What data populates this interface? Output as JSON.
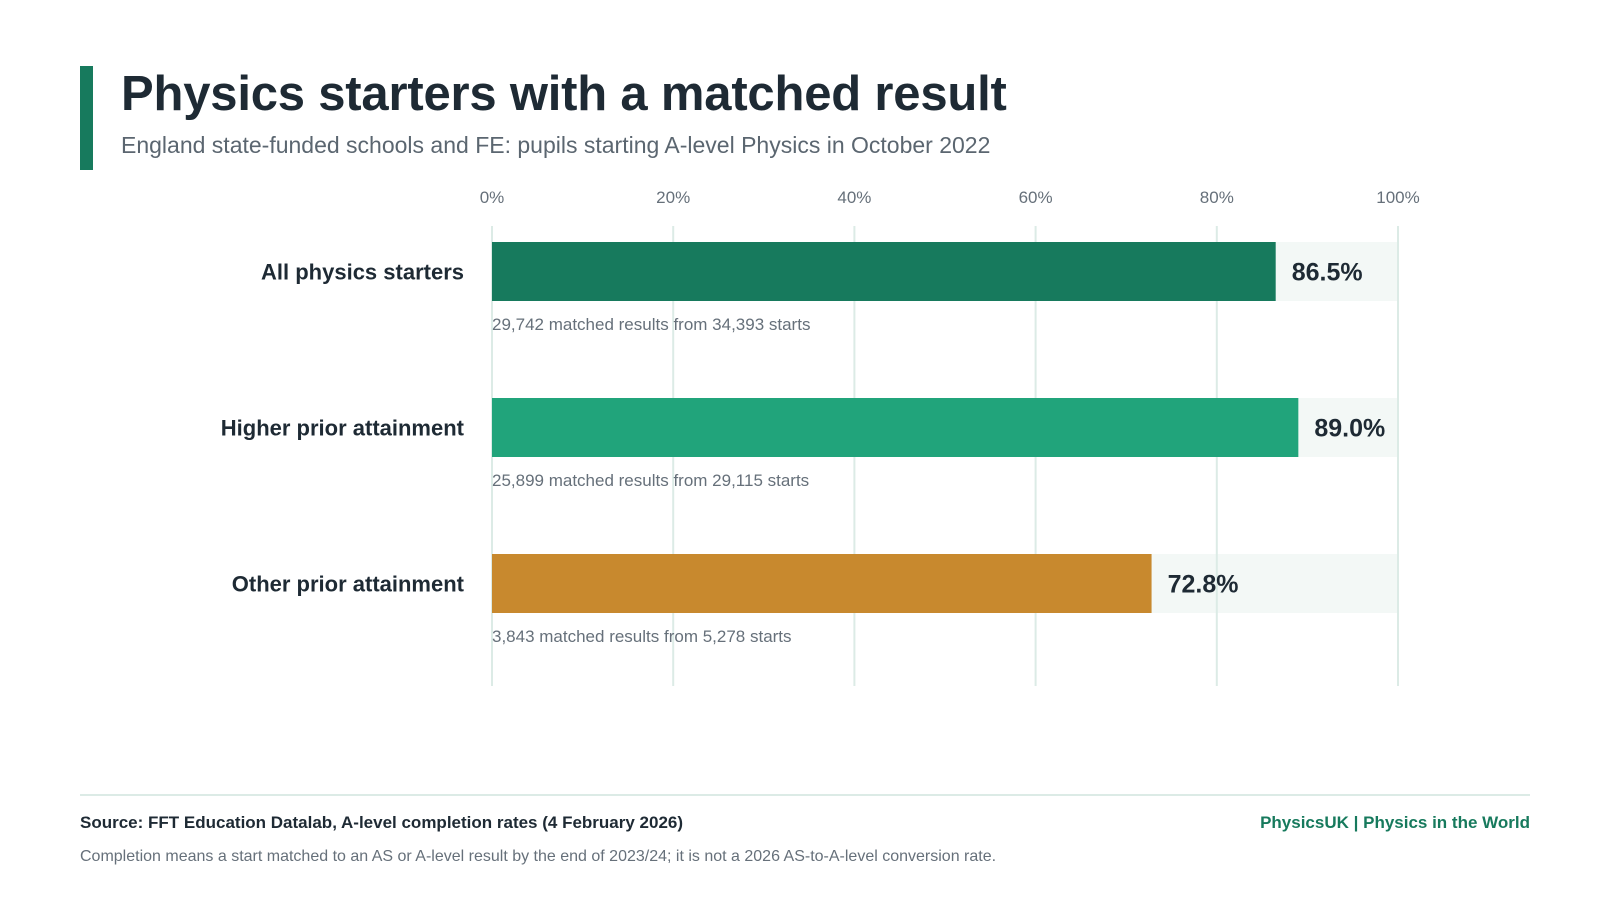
{
  "header": {
    "title": "Physics starters with a matched result",
    "subtitle": "England state-funded schools and FE: pupils starting A-level Physics in October 2022"
  },
  "chart_data": {
    "type": "bar",
    "orientation": "horizontal",
    "xlim": [
      0,
      100
    ],
    "x_ticks": [
      "0%",
      "20%",
      "40%",
      "60%",
      "80%",
      "100%"
    ],
    "grid": true,
    "categories": [
      "All physics starters",
      "Higher prior attainment",
      "Other prior attainment"
    ],
    "values": [
      86.5,
      89.0,
      72.8
    ],
    "value_labels": [
      "86.5%",
      "89.0%",
      "72.8%"
    ],
    "annotations": [
      "29,742 matched results from 34,393 starts",
      "25,899 matched results from 29,115 starts",
      "3,843 matched results from 5,278 starts"
    ],
    "colors": [
      "#177a5d",
      "#21a47b",
      "#c8892e"
    ],
    "track_color": "#f3f8f6",
    "grid_color": "#dcebe6"
  },
  "footer": {
    "source": "Source: FFT Education Datalab, A-level completion rates (4 February 2026)",
    "brand": "PhysicsUK | Physics in the World",
    "note": "Completion means a start matched to an AS or A-level result by the end of 2023/24; it is not a 2026 AS-to-A-level conversion rate."
  }
}
